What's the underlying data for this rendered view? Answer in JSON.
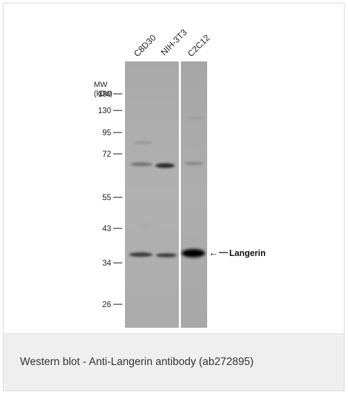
{
  "blot": {
    "mw_label_line1": "MW",
    "mw_label_line2": "(kDa)",
    "markers": [
      {
        "label": "180",
        "kda": 180
      },
      {
        "label": "130",
        "kda": 130
      },
      {
        "label": "95",
        "kda": 95
      },
      {
        "label": "72",
        "kda": 72
      },
      {
        "label": "55",
        "kda": 55
      },
      {
        "label": "43",
        "kda": 43
      },
      {
        "label": "34",
        "kda": 34
      },
      {
        "label": "26",
        "kda": 26
      }
    ],
    "lanes": [
      {
        "label": "C8D30"
      },
      {
        "label": "NIH-3T3"
      },
      {
        "label": "C2C12"
      }
    ],
    "band_annotation": "Langerin",
    "arrow_glyph": "←"
  },
  "caption": "Western blot - Anti-Langerin antibody (ab272895)"
}
